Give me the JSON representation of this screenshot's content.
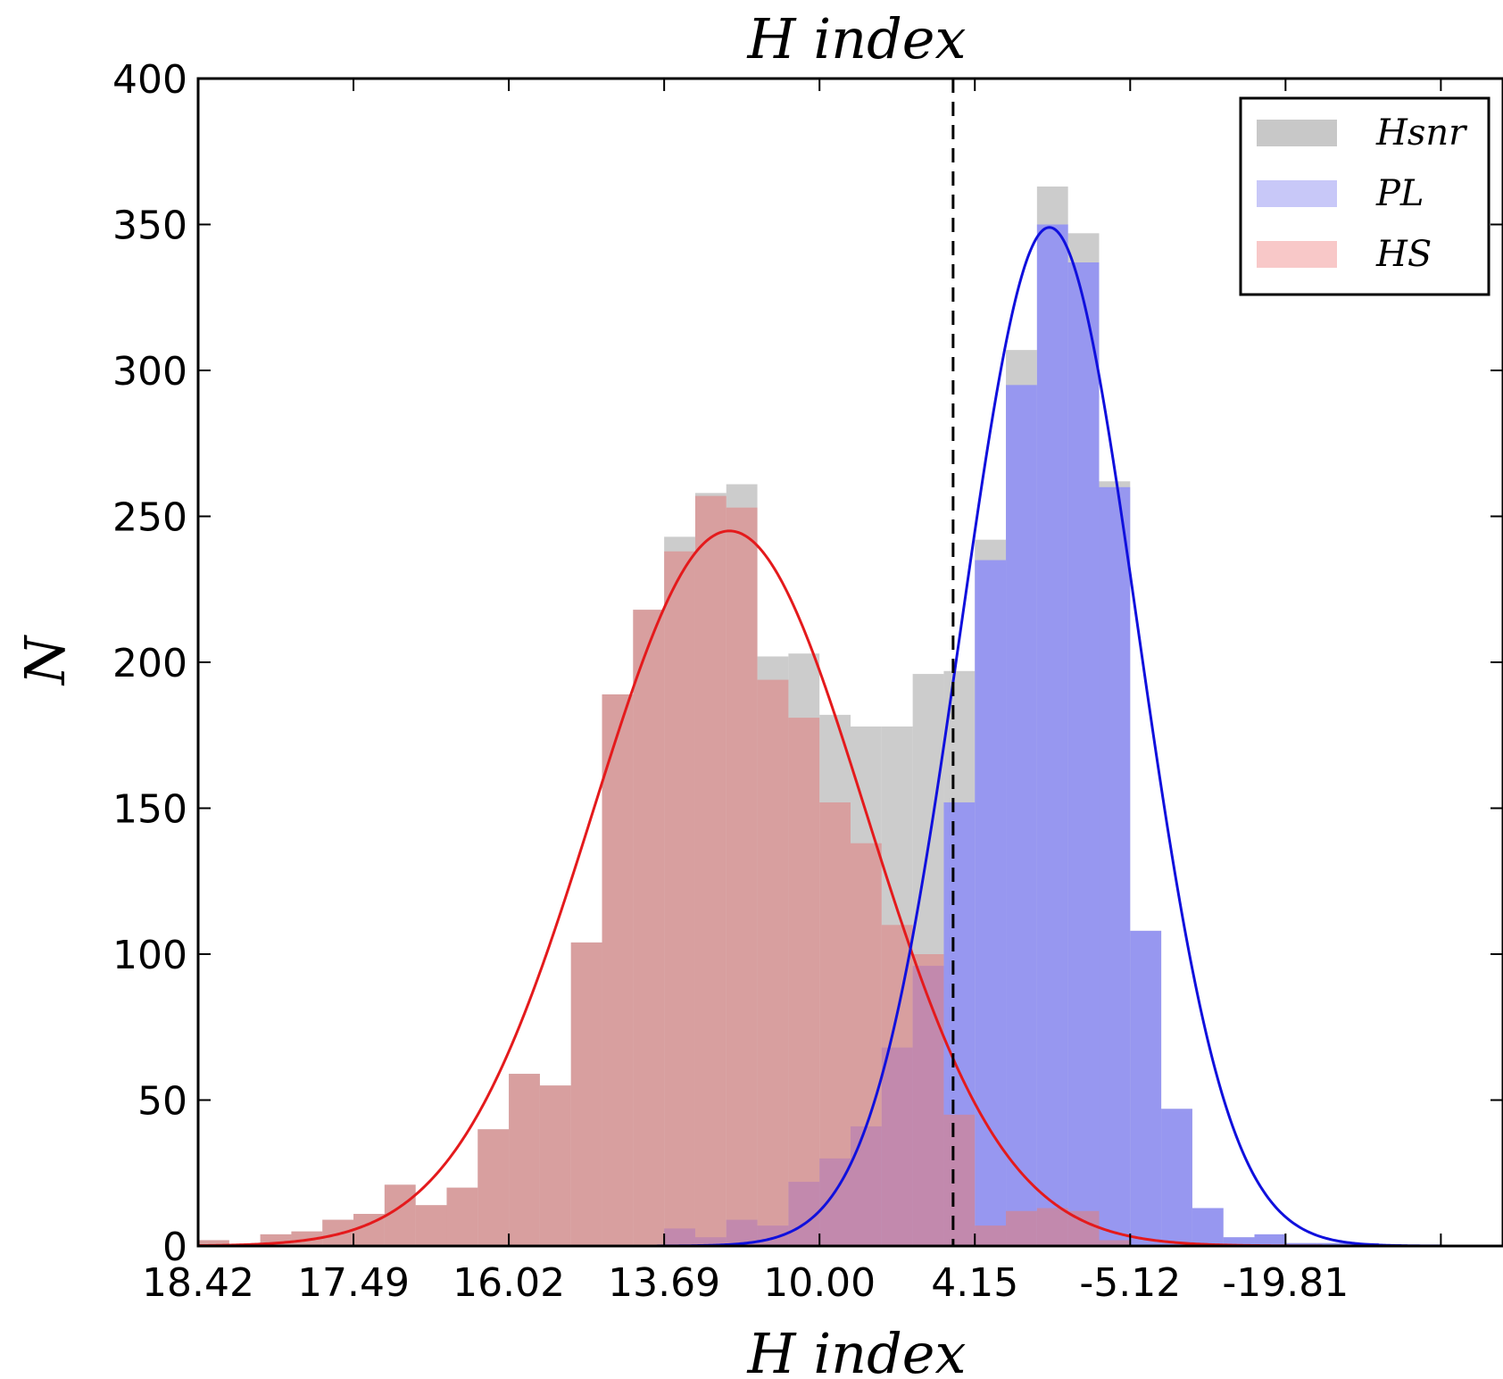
{
  "chart_data": {
    "type": "histogram",
    "title": "H index",
    "xlabel": "H index",
    "ylabel": "N",
    "ylim": [
      0,
      400
    ],
    "x_tick_labels": [
      "18.42",
      "17.49",
      "16.02",
      "13.69",
      "10.00",
      "4.15",
      "-5.12",
      "-19.81"
    ],
    "y_ticks": [
      0,
      50,
      100,
      150,
      200,
      250,
      300,
      350,
      400
    ],
    "bins": 40,
    "bin_scale_note": "x axis is a non-linear (ranked) H index scale; bins are equal width on the plotted scale, each x tick spans 5 bins",
    "threshold_tick_position": 24.3,
    "legend": {
      "position": "top-right",
      "entries": [
        "Hsnr",
        "PL",
        "HS"
      ]
    },
    "series": [
      {
        "name": "Hsnr",
        "color": "#bfbfbf",
        "values": [
          2,
          0,
          4,
          5,
          9,
          11,
          21,
          14,
          20,
          40,
          59,
          55,
          104,
          189,
          218,
          243,
          258,
          261,
          202,
          203,
          182,
          178,
          178,
          196,
          197,
          242,
          307,
          363,
          347,
          262,
          108,
          47,
          13,
          3,
          4,
          1,
          1,
          1,
          0,
          0
        ]
      },
      {
        "name": "PL",
        "color": "#8080ff",
        "values": [
          0,
          0,
          0,
          0,
          0,
          0,
          0,
          0,
          0,
          0,
          0,
          0,
          0,
          0,
          0,
          6,
          3,
          9,
          7,
          22,
          30,
          41,
          68,
          96,
          152,
          235,
          295,
          350,
          337,
          260,
          108,
          47,
          13,
          3,
          4,
          1,
          1,
          1,
          0,
          0
        ]
      },
      {
        "name": "HS",
        "color": "#e08080",
        "values": [
          2,
          0,
          4,
          5,
          9,
          11,
          21,
          14,
          20,
          40,
          59,
          55,
          104,
          189,
          218,
          238,
          257,
          253,
          194,
          181,
          152,
          138,
          110,
          100,
          45,
          7,
          12,
          13,
          12,
          2,
          0,
          0,
          0,
          0,
          0,
          0,
          0,
          0,
          0,
          0
        ]
      }
    ],
    "fits": [
      {
        "name": "HS fit",
        "color": "#e41a1c",
        "mu": 17.1,
        "sigma": 4.4,
        "amplitude": 245
      },
      {
        "name": "PL fit",
        "color": "#1010dd",
        "mu": 27.4,
        "sigma": 2.85,
        "amplitude": 349
      }
    ]
  }
}
